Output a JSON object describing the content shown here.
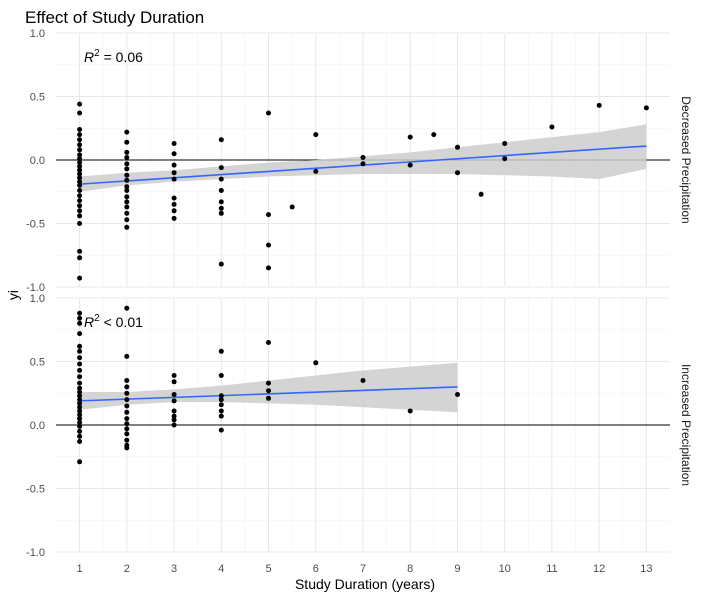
{
  "chart_data": {
    "type": "scatter",
    "title": "Effect of Study Duration",
    "xlabel": "Study Duration (years)",
    "ylabel": "yi",
    "xlim": [
      0.5,
      13.5
    ],
    "ylim": [
      -1.0,
      1.0
    ],
    "x_ticks": [
      "1",
      "2",
      "3",
      "4",
      "5",
      "6",
      "7",
      "8",
      "9",
      "10",
      "11",
      "12",
      "13"
    ],
    "y_ticks": [
      "-1.0",
      "-0.5",
      "0.0",
      "0.5",
      "1.0"
    ],
    "grid": true,
    "reference_line_y": 0,
    "point_color": "#000000",
    "fit_color": "#3366ff",
    "ribbon_color": "#cccccc",
    "panels": [
      {
        "strip_label": "Decreased Precipitation",
        "annotation_base": "R",
        "annotation_sup": "2",
        "annotation_tail": " = 0.06",
        "fit": {
          "x": [
            1,
            13
          ],
          "y": [
            -0.19,
            0.11
          ]
        },
        "ribbon": {
          "x": [
            1,
            2,
            3,
            4,
            5,
            6,
            7,
            8,
            9,
            10,
            11,
            12,
            13
          ],
          "lower": [
            -0.25,
            -0.2,
            -0.17,
            -0.15,
            -0.13,
            -0.12,
            -0.11,
            -0.11,
            -0.11,
            -0.12,
            -0.13,
            -0.15,
            -0.07
          ],
          "upper": [
            -0.13,
            -0.1,
            -0.08,
            -0.05,
            -0.02,
            0.0,
            0.03,
            0.06,
            0.1,
            0.14,
            0.18,
            0.22,
            0.28
          ]
        },
        "points": [
          [
            1,
            0.44
          ],
          [
            1,
            0.37
          ],
          [
            1,
            0.24
          ],
          [
            1,
            0.2
          ],
          [
            1,
            0.16
          ],
          [
            1,
            0.12
          ],
          [
            1,
            0.08
          ],
          [
            1,
            0.04
          ],
          [
            1,
            0.01
          ],
          [
            1,
            -0.02
          ],
          [
            1,
            -0.05
          ],
          [
            1,
            -0.08
          ],
          [
            1,
            -0.11
          ],
          [
            1,
            -0.14
          ],
          [
            1,
            -0.17
          ],
          [
            1,
            -0.2
          ],
          [
            1,
            -0.24
          ],
          [
            1,
            -0.28
          ],
          [
            1,
            -0.32
          ],
          [
            1,
            -0.36
          ],
          [
            1,
            -0.4
          ],
          [
            1,
            -0.44
          ],
          [
            1,
            -0.5
          ],
          [
            1,
            -0.72
          ],
          [
            1,
            -0.77
          ],
          [
            1,
            -0.93
          ],
          [
            2,
            0.22
          ],
          [
            2,
            0.14
          ],
          [
            2,
            0.06
          ],
          [
            2,
            0.02
          ],
          [
            2,
            -0.03
          ],
          [
            2,
            -0.07
          ],
          [
            2,
            -0.12
          ],
          [
            2,
            -0.16
          ],
          [
            2,
            -0.21
          ],
          [
            2,
            -0.24
          ],
          [
            2,
            -0.29
          ],
          [
            2,
            -0.33
          ],
          [
            2,
            -0.37
          ],
          [
            2,
            -0.42
          ],
          [
            2,
            -0.47
          ],
          [
            2,
            -0.53
          ],
          [
            3,
            0.13
          ],
          [
            3,
            0.05
          ],
          [
            3,
            -0.04
          ],
          [
            3,
            -0.1
          ],
          [
            3,
            -0.15
          ],
          [
            3,
            -0.3
          ],
          [
            3,
            -0.35
          ],
          [
            3,
            -0.4
          ],
          [
            3,
            -0.46
          ],
          [
            4,
            0.16
          ],
          [
            4,
            -0.06
          ],
          [
            4,
            -0.15
          ],
          [
            4,
            -0.24
          ],
          [
            4,
            -0.33
          ],
          [
            4,
            -0.38
          ],
          [
            4,
            -0.42
          ],
          [
            4,
            -0.82
          ],
          [
            5,
            0.37
          ],
          [
            5,
            -0.43
          ],
          [
            5,
            -0.67
          ],
          [
            5,
            -0.85
          ],
          [
            5.5,
            -0.37
          ],
          [
            6,
            0.2
          ],
          [
            6,
            -0.09
          ],
          [
            7,
            0.02
          ],
          [
            7,
            -0.03
          ],
          [
            8,
            0.18
          ],
          [
            8,
            -0.04
          ],
          [
            8.5,
            0.2
          ],
          [
            9,
            0.1
          ],
          [
            9,
            -0.1
          ],
          [
            9.5,
            -0.27
          ],
          [
            10,
            0.13
          ],
          [
            10,
            0.01
          ],
          [
            11,
            0.26
          ],
          [
            12,
            0.43
          ],
          [
            13,
            0.41
          ]
        ]
      },
      {
        "strip_label": "Increased Precipitation",
        "annotation_base": "R",
        "annotation_sup": "2",
        "annotation_tail": " < 0.01",
        "fit": {
          "x": [
            1,
            9
          ],
          "y": [
            0.19,
            0.3
          ]
        },
        "ribbon": {
          "x": [
            1,
            2,
            3,
            4,
            5,
            6,
            7,
            8,
            9
          ],
          "lower": [
            0.12,
            0.16,
            0.18,
            0.18,
            0.17,
            0.16,
            0.14,
            0.12,
            0.1
          ],
          "upper": [
            0.26,
            0.26,
            0.28,
            0.31,
            0.35,
            0.39,
            0.43,
            0.46,
            0.49
          ]
        },
        "points": [
          [
            1,
            0.88
          ],
          [
            1,
            0.84
          ],
          [
            1,
            0.8
          ],
          [
            1,
            0.72
          ],
          [
            1,
            0.62
          ],
          [
            1,
            0.58
          ],
          [
            1,
            0.53
          ],
          [
            1,
            0.48
          ],
          [
            1,
            0.43
          ],
          [
            1,
            0.38
          ],
          [
            1,
            0.33
          ],
          [
            1,
            0.29
          ],
          [
            1,
            0.26
          ],
          [
            1,
            0.23
          ],
          [
            1,
            0.2
          ],
          [
            1,
            0.17
          ],
          [
            1,
            0.14
          ],
          [
            1,
            0.11
          ],
          [
            1,
            0.08
          ],
          [
            1,
            0.05
          ],
          [
            1,
            0.02
          ],
          [
            1,
            -0.01
          ],
          [
            1,
            -0.05
          ],
          [
            1,
            -0.09
          ],
          [
            1,
            -0.13
          ],
          [
            1,
            -0.29
          ],
          [
            2,
            0.92
          ],
          [
            2,
            0.54
          ],
          [
            2,
            0.35
          ],
          [
            2,
            0.3
          ],
          [
            2,
            0.25
          ],
          [
            2,
            0.2
          ],
          [
            2,
            0.15
          ],
          [
            2,
            0.1
          ],
          [
            2,
            0.05
          ],
          [
            2,
            0.01
          ],
          [
            2,
            -0.03
          ],
          [
            2,
            -0.07
          ],
          [
            2,
            -0.12
          ],
          [
            2,
            -0.16
          ],
          [
            2,
            -0.18
          ],
          [
            3,
            0.39
          ],
          [
            3,
            0.34
          ],
          [
            3,
            0.24
          ],
          [
            3,
            0.19
          ],
          [
            3,
            0.11
          ],
          [
            3,
            0.07
          ],
          [
            3,
            0.04
          ],
          [
            3,
            0.0
          ],
          [
            4,
            0.58
          ],
          [
            4,
            0.39
          ],
          [
            4,
            0.23
          ],
          [
            4,
            0.2
          ],
          [
            4,
            0.16
          ],
          [
            4,
            0.11
          ],
          [
            4,
            0.07
          ],
          [
            4,
            -0.04
          ],
          [
            5,
            0.65
          ],
          [
            5,
            0.33
          ],
          [
            5,
            0.27
          ],
          [
            5,
            0.21
          ],
          [
            6,
            0.49
          ],
          [
            7,
            0.35
          ],
          [
            8,
            0.11
          ],
          [
            9,
            0.24
          ]
        ]
      }
    ]
  }
}
